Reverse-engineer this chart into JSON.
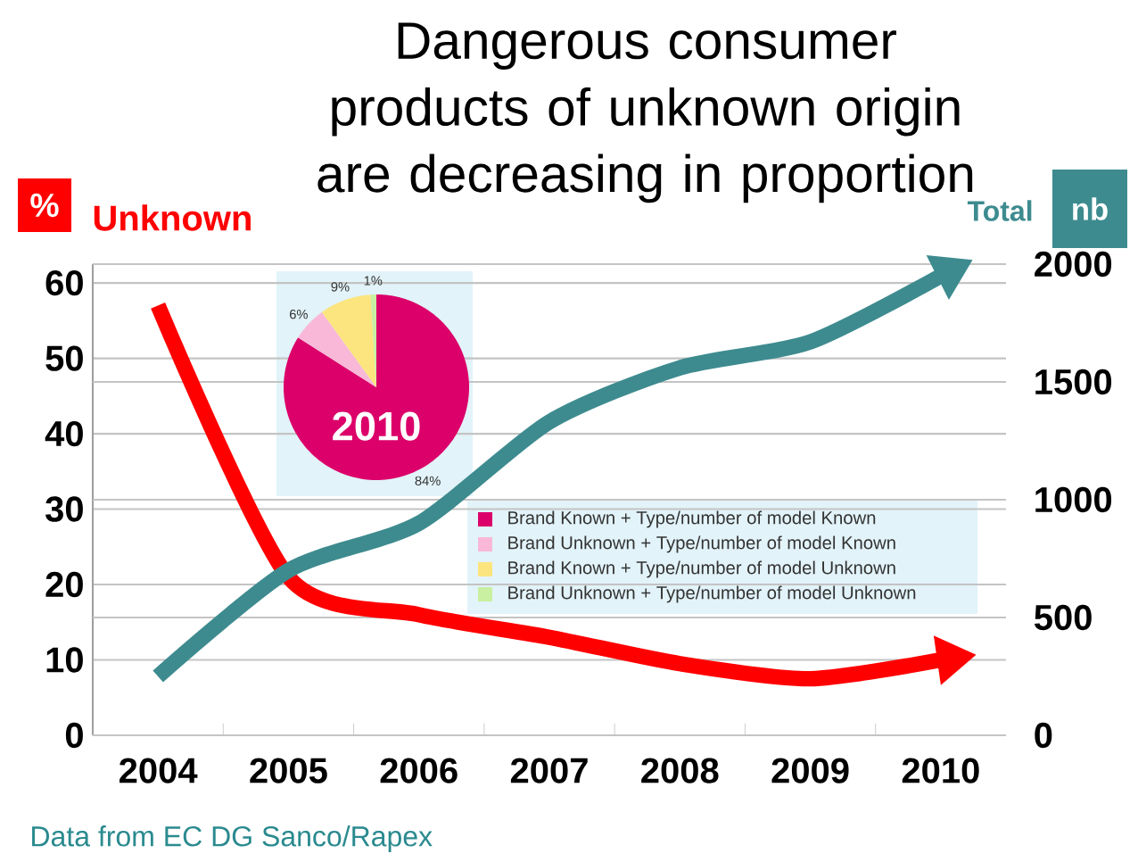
{
  "chart_data": [
    {
      "type": "line",
      "title": "Dangerous consumer products of unknown origin are decreasing in proportion",
      "ylabel": "%",
      "y2label": "nb",
      "categories": [
        "2004",
        "2005",
        "2006",
        "2007",
        "2008",
        "2009",
        "2010"
      ],
      "series": [
        {
          "name": "Unknown",
          "color": "#ff0000",
          "values": [
            57,
            21,
            16,
            13,
            9.5,
            7.5,
            10
          ]
        },
        {
          "name": "Total",
          "color": "#3d8b8f",
          "axis": "y2",
          "values": [
            250,
            700,
            900,
            1330,
            1560,
            1670,
            1950
          ]
        }
      ],
      "ylim": [
        0,
        62.5
      ],
      "yticks": [
        0,
        10,
        20,
        30,
        40,
        50,
        60
      ],
      "y2lim": [
        0,
        2000
      ],
      "y2ticks": [
        0,
        500,
        1000,
        1500,
        2000
      ],
      "grid": "y",
      "annotations": [
        "Data from EC DG Sanco/Rapex"
      ]
    },
    {
      "type": "pie",
      "title": "2010",
      "categories": [
        "Brand Known + Type/number of model Known",
        "Brand Unknown + Type/number of model Known",
        "Brand Known + Type/number of model Unknown",
        "Brand Unknown + Type/number of model Unknown"
      ],
      "values": [
        84,
        6,
        9,
        1
      ],
      "colors": [
        "#dc006a",
        "#f9b8d8",
        "#fce57e",
        "#c8f0a0"
      ],
      "value_labels": [
        "84%",
        "6%",
        "9%",
        "1%"
      ],
      "legend": "right"
    }
  ]
}
